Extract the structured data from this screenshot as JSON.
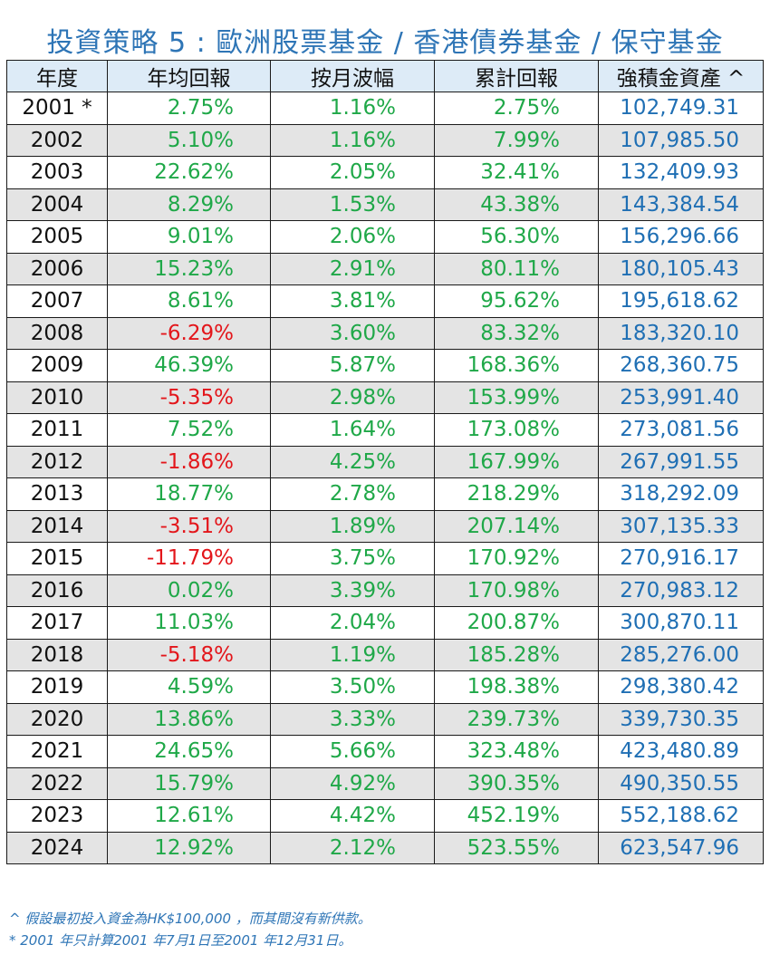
{
  "title": "投資策略 5 : 歐洲股票基金 / 香港債券基金  /  保守基金",
  "table": {
    "headers": [
      "年度",
      "年均回報",
      "按月波幅",
      "累計回報",
      "強積金資產 ^"
    ],
    "rows": [
      {
        "year": "2001 *",
        "annual_return": "2.75%",
        "monthly_volatility": "1.16%",
        "cumulative_return": "2.75%",
        "mpf_assets": "102,749.31"
      },
      {
        "year": "2002",
        "annual_return": "5.10%",
        "monthly_volatility": "1.16%",
        "cumulative_return": "7.99%",
        "mpf_assets": "107,985.50"
      },
      {
        "year": "2003",
        "annual_return": "22.62%",
        "monthly_volatility": "2.05%",
        "cumulative_return": "32.41%",
        "mpf_assets": "132,409.93"
      },
      {
        "year": "2004",
        "annual_return": "8.29%",
        "monthly_volatility": "1.53%",
        "cumulative_return": "43.38%",
        "mpf_assets": "143,384.54"
      },
      {
        "year": "2005",
        "annual_return": "9.01%",
        "monthly_volatility": "2.06%",
        "cumulative_return": "56.30%",
        "mpf_assets": "156,296.66"
      },
      {
        "year": "2006",
        "annual_return": "15.23%",
        "monthly_volatility": "2.91%",
        "cumulative_return": "80.11%",
        "mpf_assets": "180,105.43"
      },
      {
        "year": "2007",
        "annual_return": "8.61%",
        "monthly_volatility": "3.81%",
        "cumulative_return": "95.62%",
        "mpf_assets": "195,618.62"
      },
      {
        "year": "2008",
        "annual_return": "-6.29%",
        "monthly_volatility": "3.60%",
        "cumulative_return": "83.32%",
        "mpf_assets": "183,320.10"
      },
      {
        "year": "2009",
        "annual_return": "46.39%",
        "monthly_volatility": "5.87%",
        "cumulative_return": "168.36%",
        "mpf_assets": "268,360.75"
      },
      {
        "year": "2010",
        "annual_return": "-5.35%",
        "monthly_volatility": "2.98%",
        "cumulative_return": "153.99%",
        "mpf_assets": "253,991.40"
      },
      {
        "year": "2011",
        "annual_return": "7.52%",
        "monthly_volatility": "1.64%",
        "cumulative_return": "173.08%",
        "mpf_assets": "273,081.56"
      },
      {
        "year": "2012",
        "annual_return": "-1.86%",
        "monthly_volatility": "4.25%",
        "cumulative_return": "167.99%",
        "mpf_assets": "267,991.55"
      },
      {
        "year": "2013",
        "annual_return": "18.77%",
        "monthly_volatility": "2.78%",
        "cumulative_return": "218.29%",
        "mpf_assets": "318,292.09"
      },
      {
        "year": "2014",
        "annual_return": "-3.51%",
        "monthly_volatility": "1.89%",
        "cumulative_return": "207.14%",
        "mpf_assets": "307,135.33"
      },
      {
        "year": "2015",
        "annual_return": "-11.79%",
        "monthly_volatility": "3.75%",
        "cumulative_return": "170.92%",
        "mpf_assets": "270,916.17"
      },
      {
        "year": "2016",
        "annual_return": "0.02%",
        "monthly_volatility": "3.39%",
        "cumulative_return": "170.98%",
        "mpf_assets": "270,983.12"
      },
      {
        "year": "2017",
        "annual_return": "11.03%",
        "monthly_volatility": "2.04%",
        "cumulative_return": "200.87%",
        "mpf_assets": "300,870.11"
      },
      {
        "year": "2018",
        "annual_return": "-5.18%",
        "monthly_volatility": "1.19%",
        "cumulative_return": "185.28%",
        "mpf_assets": "285,276.00"
      },
      {
        "year": "2019",
        "annual_return": "4.59%",
        "monthly_volatility": "3.50%",
        "cumulative_return": "198.38%",
        "mpf_assets": "298,380.42"
      },
      {
        "year": "2020",
        "annual_return": "13.86%",
        "monthly_volatility": "3.33%",
        "cumulative_return": "239.73%",
        "mpf_assets": "339,730.35"
      },
      {
        "year": "2021",
        "annual_return": "24.65%",
        "monthly_volatility": "5.66%",
        "cumulative_return": "323.48%",
        "mpf_assets": "423,480.89"
      },
      {
        "year": "2022",
        "annual_return": "15.79%",
        "monthly_volatility": "4.92%",
        "cumulative_return": "390.35%",
        "mpf_assets": "490,350.55"
      },
      {
        "year": "2023",
        "annual_return": "12.61%",
        "monthly_volatility": "4.42%",
        "cumulative_return": "452.19%",
        "mpf_assets": "552,188.62"
      },
      {
        "year": "2024",
        "annual_return": "12.92%",
        "monthly_volatility": "2.12%",
        "cumulative_return": "523.55%",
        "mpf_assets": "623,547.96"
      }
    ]
  },
  "colors": {
    "title": "#2E75B6",
    "header_bg": "#DDEBF7",
    "zebra_bg": "#E4E4E4",
    "positive": "#1FA848",
    "negative": "#E3161B",
    "assets": "#1F6FB4"
  },
  "notes": [
    "^ 假設最初投入資金為HK$100,000 ，而其間沒有新供款。",
    "* 2001 年只計算2001 年7月1日至2001 年12月31日。"
  ]
}
